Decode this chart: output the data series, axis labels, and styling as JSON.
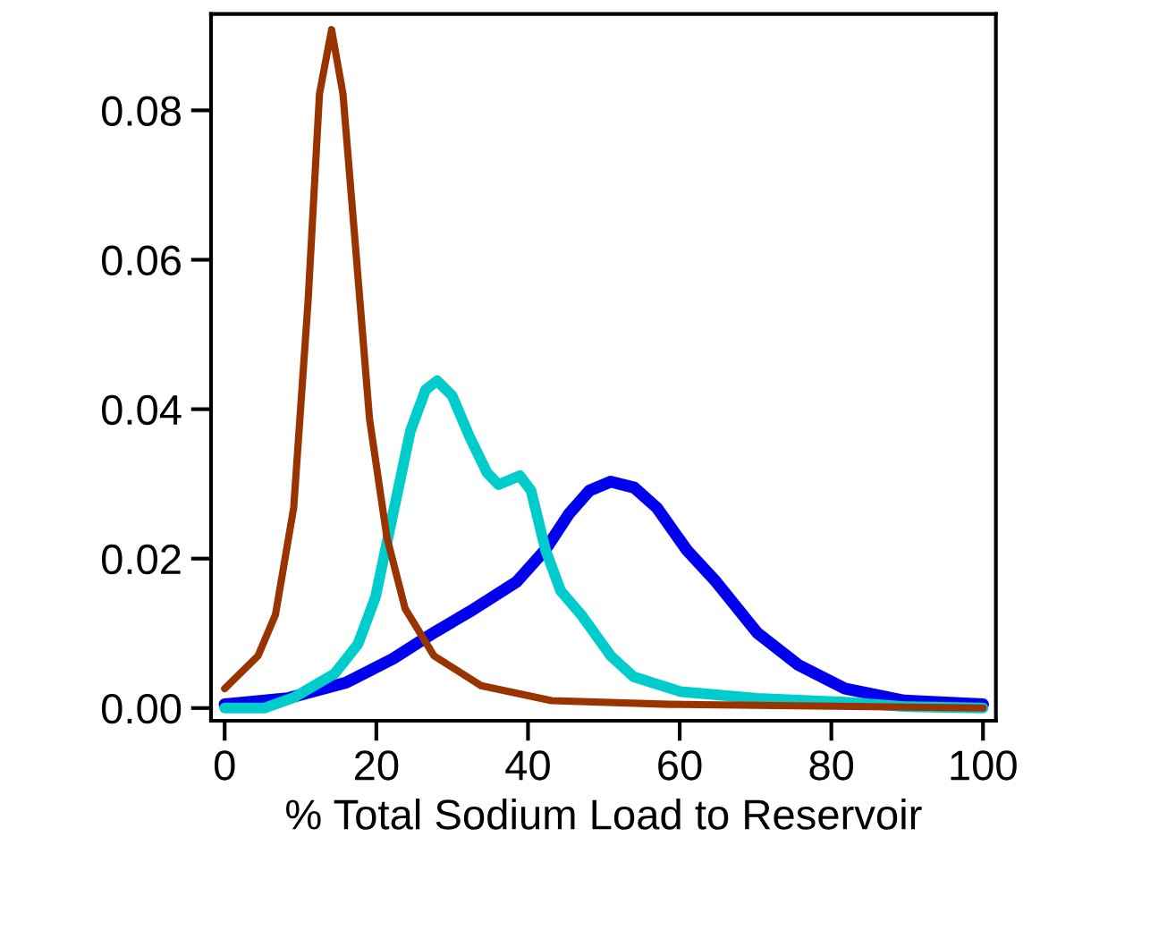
{
  "chart_data": {
    "type": "line",
    "xlabel": "% Total Sodium Load to Reservoir",
    "xlim": [
      -1.8,
      101.7
    ],
    "ylim": [
      -0.0017,
      0.0929
    ],
    "xticks": [
      0,
      20,
      40,
      60,
      80,
      100
    ],
    "yticks": [
      {
        "value": 0,
        "label": "0.00"
      },
      {
        "value": 0.02,
        "label": "0.02"
      },
      {
        "value": 0.04,
        "label": "0.04"
      },
      {
        "value": 0.06,
        "label": "0.06"
      },
      {
        "value": 0.08,
        "label": "0.08"
      }
    ],
    "grid": false,
    "legend": false,
    "marker": "none",
    "line_style": "solid",
    "series": [
      {
        "color": "#0000ee",
        "x": [
          0,
          8.3,
          16,
          22.2,
          27.6,
          32.3,
          38.5,
          42.3,
          45.4,
          48.1,
          50.9,
          54,
          57,
          60.9,
          64.8,
          70.2,
          75.6,
          81.8,
          89.6,
          100
        ],
        "values": [
          0.0005,
          0.0013,
          0.0034,
          0.0066,
          0.0101,
          0.0129,
          0.0169,
          0.0212,
          0.026,
          0.0291,
          0.0303,
          0.0295,
          0.0268,
          0.0212,
          0.0169,
          0.0101,
          0.0058,
          0.0026,
          0.001,
          0.0005
        ]
      },
      {
        "color": "#00cccc",
        "x": [
          0,
          5.2,
          9.1,
          14.5,
          17.6,
          19.9,
          22.2,
          24.5,
          26.5,
          28,
          30,
          32.3,
          34.6,
          36.1,
          38.9,
          40.4,
          42.3,
          44.3,
          47,
          50.9,
          53.9,
          60.1,
          70.2,
          81.8,
          89.6,
          100
        ],
        "values": [
          0,
          0,
          0.0014,
          0.0046,
          0.0086,
          0.0149,
          0.026,
          0.0371,
          0.0426,
          0.0438,
          0.0418,
          0.0363,
          0.0315,
          0.0299,
          0.0311,
          0.0291,
          0.0212,
          0.0157,
          0.0125,
          0.007,
          0.0042,
          0.0022,
          0.0013,
          0.0008,
          0.0002,
          0
        ]
      },
      {
        "color": "#993300",
        "x": [
          0,
          4.4,
          6.7,
          9.1,
          11,
          12.5,
          14.1,
          15.6,
          17.2,
          19.1,
          21.4,
          23.8,
          27.6,
          33.8,
          43.1,
          58.6,
          100
        ],
        "values": [
          0.0026,
          0.007,
          0.0125,
          0.0268,
          0.0545,
          0.0822,
          0.0908,
          0.0822,
          0.0624,
          0.0387,
          0.0228,
          0.0133,
          0.007,
          0.003,
          0.001,
          0.0005,
          0
        ]
      }
    ]
  }
}
